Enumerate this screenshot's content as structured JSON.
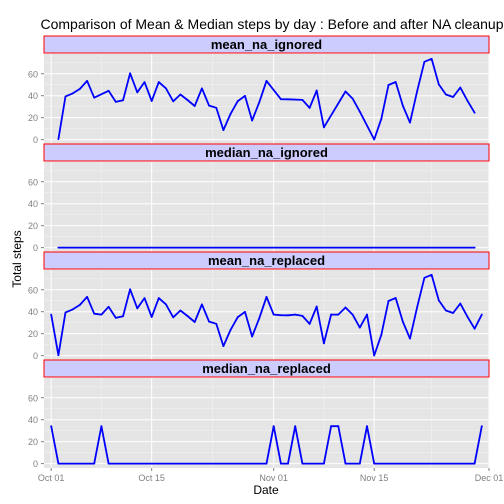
{
  "chart_data": {
    "type": "line",
    "title": "Comparison of Mean & Median steps by day : Before and after NA cleanup",
    "xlabel": "Date",
    "ylabel": "Total steps",
    "x_range": [
      "2012-09-30",
      "2012-12-01"
    ],
    "ylim": [
      -4,
      78
    ],
    "x_tick_labels": [
      "Oct 01",
      "Oct 15",
      "Nov 01",
      "Nov 15",
      "Dec 01"
    ],
    "x_tick_dates": [
      "2012-10-01",
      "2012-10-15",
      "2012-11-01",
      "2012-11-15",
      "2012-12-01"
    ],
    "y_ticks": [
      0,
      20,
      40,
      60
    ],
    "grid": true,
    "line_color": "#0000ff",
    "strip_fill": "#ccccff",
    "strip_border": "#ff0000",
    "panel_bg": "#e5e5e5",
    "facets": [
      {
        "label": "mean_na_ignored",
        "points": [
          [
            "2012-10-02",
            0.4
          ],
          [
            "2012-10-03",
            39.4
          ],
          [
            "2012-10-04",
            42.1
          ],
          [
            "2012-10-05",
            46.2
          ],
          [
            "2012-10-06",
            53.5
          ],
          [
            "2012-10-07",
            38.2
          ],
          [
            "2012-10-09",
            44.5
          ],
          [
            "2012-10-10",
            34.4
          ],
          [
            "2012-10-11",
            35.8
          ],
          [
            "2012-10-12",
            60.4
          ],
          [
            "2012-10-13",
            43.1
          ],
          [
            "2012-10-14",
            52.4
          ],
          [
            "2012-10-15",
            35.2
          ],
          [
            "2012-10-16",
            52.4
          ],
          [
            "2012-10-17",
            46.7
          ],
          [
            "2012-10-18",
            34.9
          ],
          [
            "2012-10-19",
            41.1
          ],
          [
            "2012-10-20",
            36.1
          ],
          [
            "2012-10-21",
            30.6
          ],
          [
            "2012-10-22",
            46.7
          ],
          [
            "2012-10-23",
            30.97
          ],
          [
            "2012-10-24",
            29.0
          ],
          [
            "2012-10-25",
            8.65
          ],
          [
            "2012-10-26",
            23.5
          ],
          [
            "2012-10-27",
            35.1
          ],
          [
            "2012-10-28",
            39.8
          ],
          [
            "2012-10-29",
            17.4
          ],
          [
            "2012-10-30",
            34.1
          ],
          [
            "2012-10-31",
            53.5
          ],
          [
            "2012-11-02",
            36.8
          ],
          [
            "2012-11-03",
            36.7
          ],
          [
            "2012-11-05",
            36.2
          ],
          [
            "2012-11-06",
            28.9
          ],
          [
            "2012-11-07",
            44.7
          ],
          [
            "2012-11-08",
            11.2
          ],
          [
            "2012-11-11",
            43.8
          ],
          [
            "2012-11-12",
            37.4
          ],
          [
            "2012-11-13",
            25.5
          ],
          [
            "2012-11-15",
            0.1
          ],
          [
            "2012-11-16",
            18.9
          ],
          [
            "2012-11-17",
            49.8
          ],
          [
            "2012-11-18",
            52.5
          ],
          [
            "2012-11-19",
            30.7
          ],
          [
            "2012-11-20",
            15.5
          ],
          [
            "2012-11-21",
            44.4
          ],
          [
            "2012-11-22",
            70.9
          ],
          [
            "2012-11-23",
            73.6
          ],
          [
            "2012-11-24",
            50.3
          ],
          [
            "2012-11-25",
            41.1
          ],
          [
            "2012-11-26",
            38.8
          ],
          [
            "2012-11-27",
            47.4
          ],
          [
            "2012-11-28",
            35.4
          ],
          [
            "2012-11-29",
            24.5
          ]
        ]
      },
      {
        "label": "median_na_ignored",
        "points": [
          [
            "2012-10-02",
            0
          ],
          [
            "2012-11-29",
            0
          ]
        ]
      },
      {
        "label": "mean_na_replaced",
        "points": [
          [
            "2012-10-01",
            37.4
          ],
          [
            "2012-10-02",
            0.4
          ],
          [
            "2012-10-03",
            39.4
          ],
          [
            "2012-10-04",
            42.1
          ],
          [
            "2012-10-05",
            46.2
          ],
          [
            "2012-10-06",
            53.5
          ],
          [
            "2012-10-07",
            38.2
          ],
          [
            "2012-10-08",
            37.4
          ],
          [
            "2012-10-09",
            44.5
          ],
          [
            "2012-10-10",
            34.4
          ],
          [
            "2012-10-11",
            35.8
          ],
          [
            "2012-10-12",
            60.4
          ],
          [
            "2012-10-13",
            43.1
          ],
          [
            "2012-10-14",
            52.4
          ],
          [
            "2012-10-15",
            35.2
          ],
          [
            "2012-10-16",
            52.4
          ],
          [
            "2012-10-17",
            46.7
          ],
          [
            "2012-10-18",
            34.9
          ],
          [
            "2012-10-19",
            41.1
          ],
          [
            "2012-10-20",
            36.1
          ],
          [
            "2012-10-21",
            30.6
          ],
          [
            "2012-10-22",
            46.7
          ],
          [
            "2012-10-23",
            30.97
          ],
          [
            "2012-10-24",
            29.0
          ],
          [
            "2012-10-25",
            8.65
          ],
          [
            "2012-10-26",
            23.5
          ],
          [
            "2012-10-27",
            35.1
          ],
          [
            "2012-10-28",
            39.8
          ],
          [
            "2012-10-29",
            17.4
          ],
          [
            "2012-10-30",
            34.1
          ],
          [
            "2012-10-31",
            53.5
          ],
          [
            "2012-11-01",
            37.4
          ],
          [
            "2012-11-02",
            36.8
          ],
          [
            "2012-11-03",
            36.7
          ],
          [
            "2012-11-04",
            37.4
          ],
          [
            "2012-11-05",
            36.2
          ],
          [
            "2012-11-06",
            28.9
          ],
          [
            "2012-11-07",
            44.7
          ],
          [
            "2012-11-08",
            11.2
          ],
          [
            "2012-11-09",
            37.4
          ],
          [
            "2012-11-10",
            37.4
          ],
          [
            "2012-11-11",
            43.8
          ],
          [
            "2012-11-12",
            37.4
          ],
          [
            "2012-11-13",
            25.5
          ],
          [
            "2012-11-14",
            37.4
          ],
          [
            "2012-11-15",
            0.1
          ],
          [
            "2012-11-16",
            18.9
          ],
          [
            "2012-11-17",
            49.8
          ],
          [
            "2012-11-18",
            52.5
          ],
          [
            "2012-11-19",
            30.7
          ],
          [
            "2012-11-20",
            15.5
          ],
          [
            "2012-11-21",
            44.4
          ],
          [
            "2012-11-22",
            70.9
          ],
          [
            "2012-11-23",
            73.6
          ],
          [
            "2012-11-24",
            50.3
          ],
          [
            "2012-11-25",
            41.1
          ],
          [
            "2012-11-26",
            38.8
          ],
          [
            "2012-11-27",
            47.4
          ],
          [
            "2012-11-28",
            35.4
          ],
          [
            "2012-11-29",
            24.5
          ],
          [
            "2012-11-30",
            37.4
          ]
        ]
      },
      {
        "label": "median_na_replaced",
        "points": [
          [
            "2012-10-01",
            34.1
          ],
          [
            "2012-10-02",
            0
          ],
          [
            "2012-10-07",
            0
          ],
          [
            "2012-10-08",
            34.1
          ],
          [
            "2012-10-09",
            0
          ],
          [
            "2012-10-31",
            0
          ],
          [
            "2012-11-01",
            34.1
          ],
          [
            "2012-11-02",
            0
          ],
          [
            "2012-11-03",
            0
          ],
          [
            "2012-11-04",
            34.1
          ],
          [
            "2012-11-05",
            0
          ],
          [
            "2012-11-08",
            0
          ],
          [
            "2012-11-09",
            34.1
          ],
          [
            "2012-11-10",
            34.1
          ],
          [
            "2012-11-11",
            0
          ],
          [
            "2012-11-13",
            0
          ],
          [
            "2012-11-14",
            34.1
          ],
          [
            "2012-11-15",
            0
          ],
          [
            "2012-11-29",
            0
          ],
          [
            "2012-11-30",
            34.1
          ]
        ]
      }
    ]
  }
}
